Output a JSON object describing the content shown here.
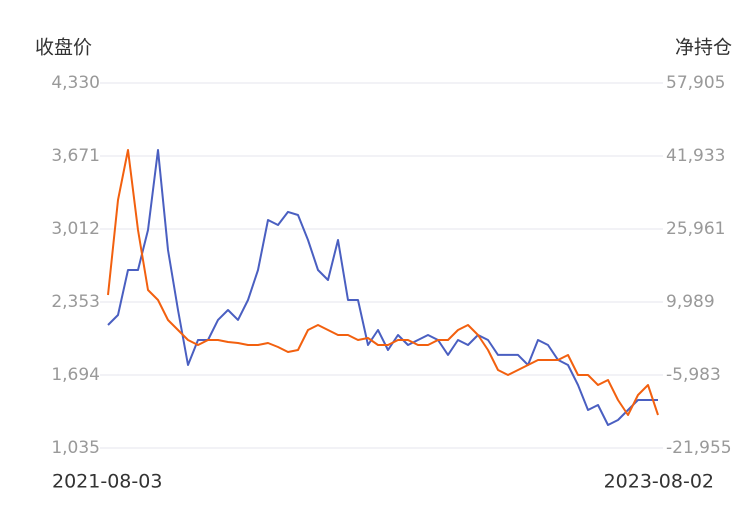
{
  "chart_data": {
    "type": "line",
    "y_label": "收盘价",
    "y2_label": "净持仓",
    "categories": [
      "2021-08-03",
      null,
      null,
      null,
      null,
      null,
      null,
      null,
      null,
      null,
      null,
      null,
      null,
      null,
      null,
      null,
      null,
      null,
      null,
      null,
      null,
      null,
      null,
      null,
      null,
      null,
      null,
      null,
      null,
      null,
      null,
      null,
      null,
      null,
      null,
      null,
      null,
      null,
      null,
      null,
      null,
      null,
      null,
      null,
      null,
      null,
      null,
      null,
      null,
      null,
      null,
      null,
      null,
      null,
      null,
      "2023-08-02"
    ],
    "series": [
      {
        "color": "#4a5fc1",
        "axis": "y",
        "values": [
          2145,
          2236,
          2642,
          2642,
          3003,
          3725,
          2822,
          2281,
          1784,
          2010,
          2010,
          2191,
          2281,
          2191,
          2371,
          2642,
          3093,
          3048,
          3166,
          3138,
          2913,
          2642,
          2552,
          2913,
          2371,
          2371,
          1965,
          2100,
          1920,
          2055,
          1965,
          2010,
          2055,
          2010,
          1875,
          2010,
          1965,
          2055,
          2010,
          1875,
          1875,
          1875,
          1784,
          2010,
          1965,
          1830,
          1784,
          1604,
          1378,
          1423,
          1243,
          1288,
          1378,
          1468,
          1468,
          1468
        ]
      },
      {
        "color": "#f2600f",
        "axis": "y2",
        "values": [
          11519,
          32305,
          43245,
          25741,
          12613,
          10425,
          6049,
          3861,
          1673,
          579,
          1673,
          1673,
          1236,
          1017,
          579,
          579,
          1017,
          142,
          -952,
          -515,
          3861,
          4955,
          3861,
          2767,
          2767,
          1673,
          2111,
          579,
          579,
          1673,
          1673,
          579,
          579,
          1673,
          1673,
          3861,
          4955,
          2767,
          -515,
          -4891,
          -5985,
          -4891,
          -3797,
          -2703,
          -2703,
          -2703,
          -1609,
          -5985,
          -5985,
          -8173,
          -7078,
          -11455,
          -14736,
          -10360,
          -8173,
          -14736
        ]
      }
    ],
    "ylim": [
      1035,
      4330
    ],
    "yticks": [
      {
        "value": 1035,
        "label": "1,035"
      },
      {
        "value": 1694,
        "label": "1,694"
      },
      {
        "value": 2353,
        "label": "2,353"
      },
      {
        "value": 3012,
        "label": "3,012"
      },
      {
        "value": 3671,
        "label": "3,671"
      },
      {
        "value": 4330,
        "label": "4,330"
      }
    ],
    "y2lim": [
      -21955,
      57905
    ],
    "y2ticks": [
      {
        "value": -21955,
        "label": "-21,955"
      },
      {
        "value": -5983,
        "label": "-5,983"
      },
      {
        "value": 9989,
        "label": "9,989"
      },
      {
        "value": 25961,
        "label": "25,961"
      },
      {
        "value": 41933,
        "label": "41,933"
      },
      {
        "value": 57905,
        "label": "57,905"
      }
    ],
    "grid": true
  }
}
